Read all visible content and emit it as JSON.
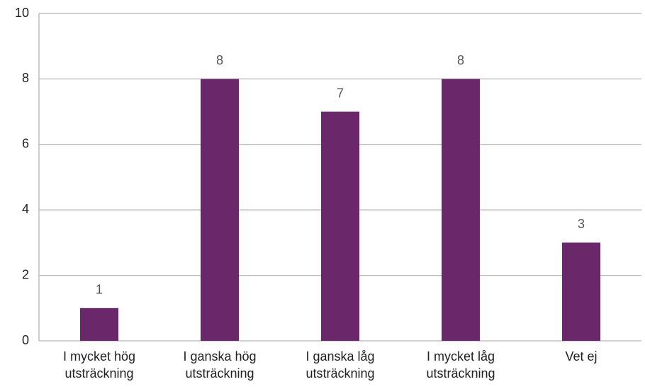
{
  "chart_data": {
    "type": "bar",
    "categories": [
      "I mycket hög utsträckning",
      "I ganska hög utsträckning",
      "I ganska låg utsträckning",
      "I mycket låg utsträckning",
      "Vet ej"
    ],
    "values": [
      1,
      8,
      7,
      8,
      3
    ],
    "color": "#6a276a",
    "ylim": [
      0,
      10
    ],
    "yticks": [
      0,
      2,
      4,
      6,
      8,
      10
    ],
    "grid": true,
    "data_labels": true
  }
}
